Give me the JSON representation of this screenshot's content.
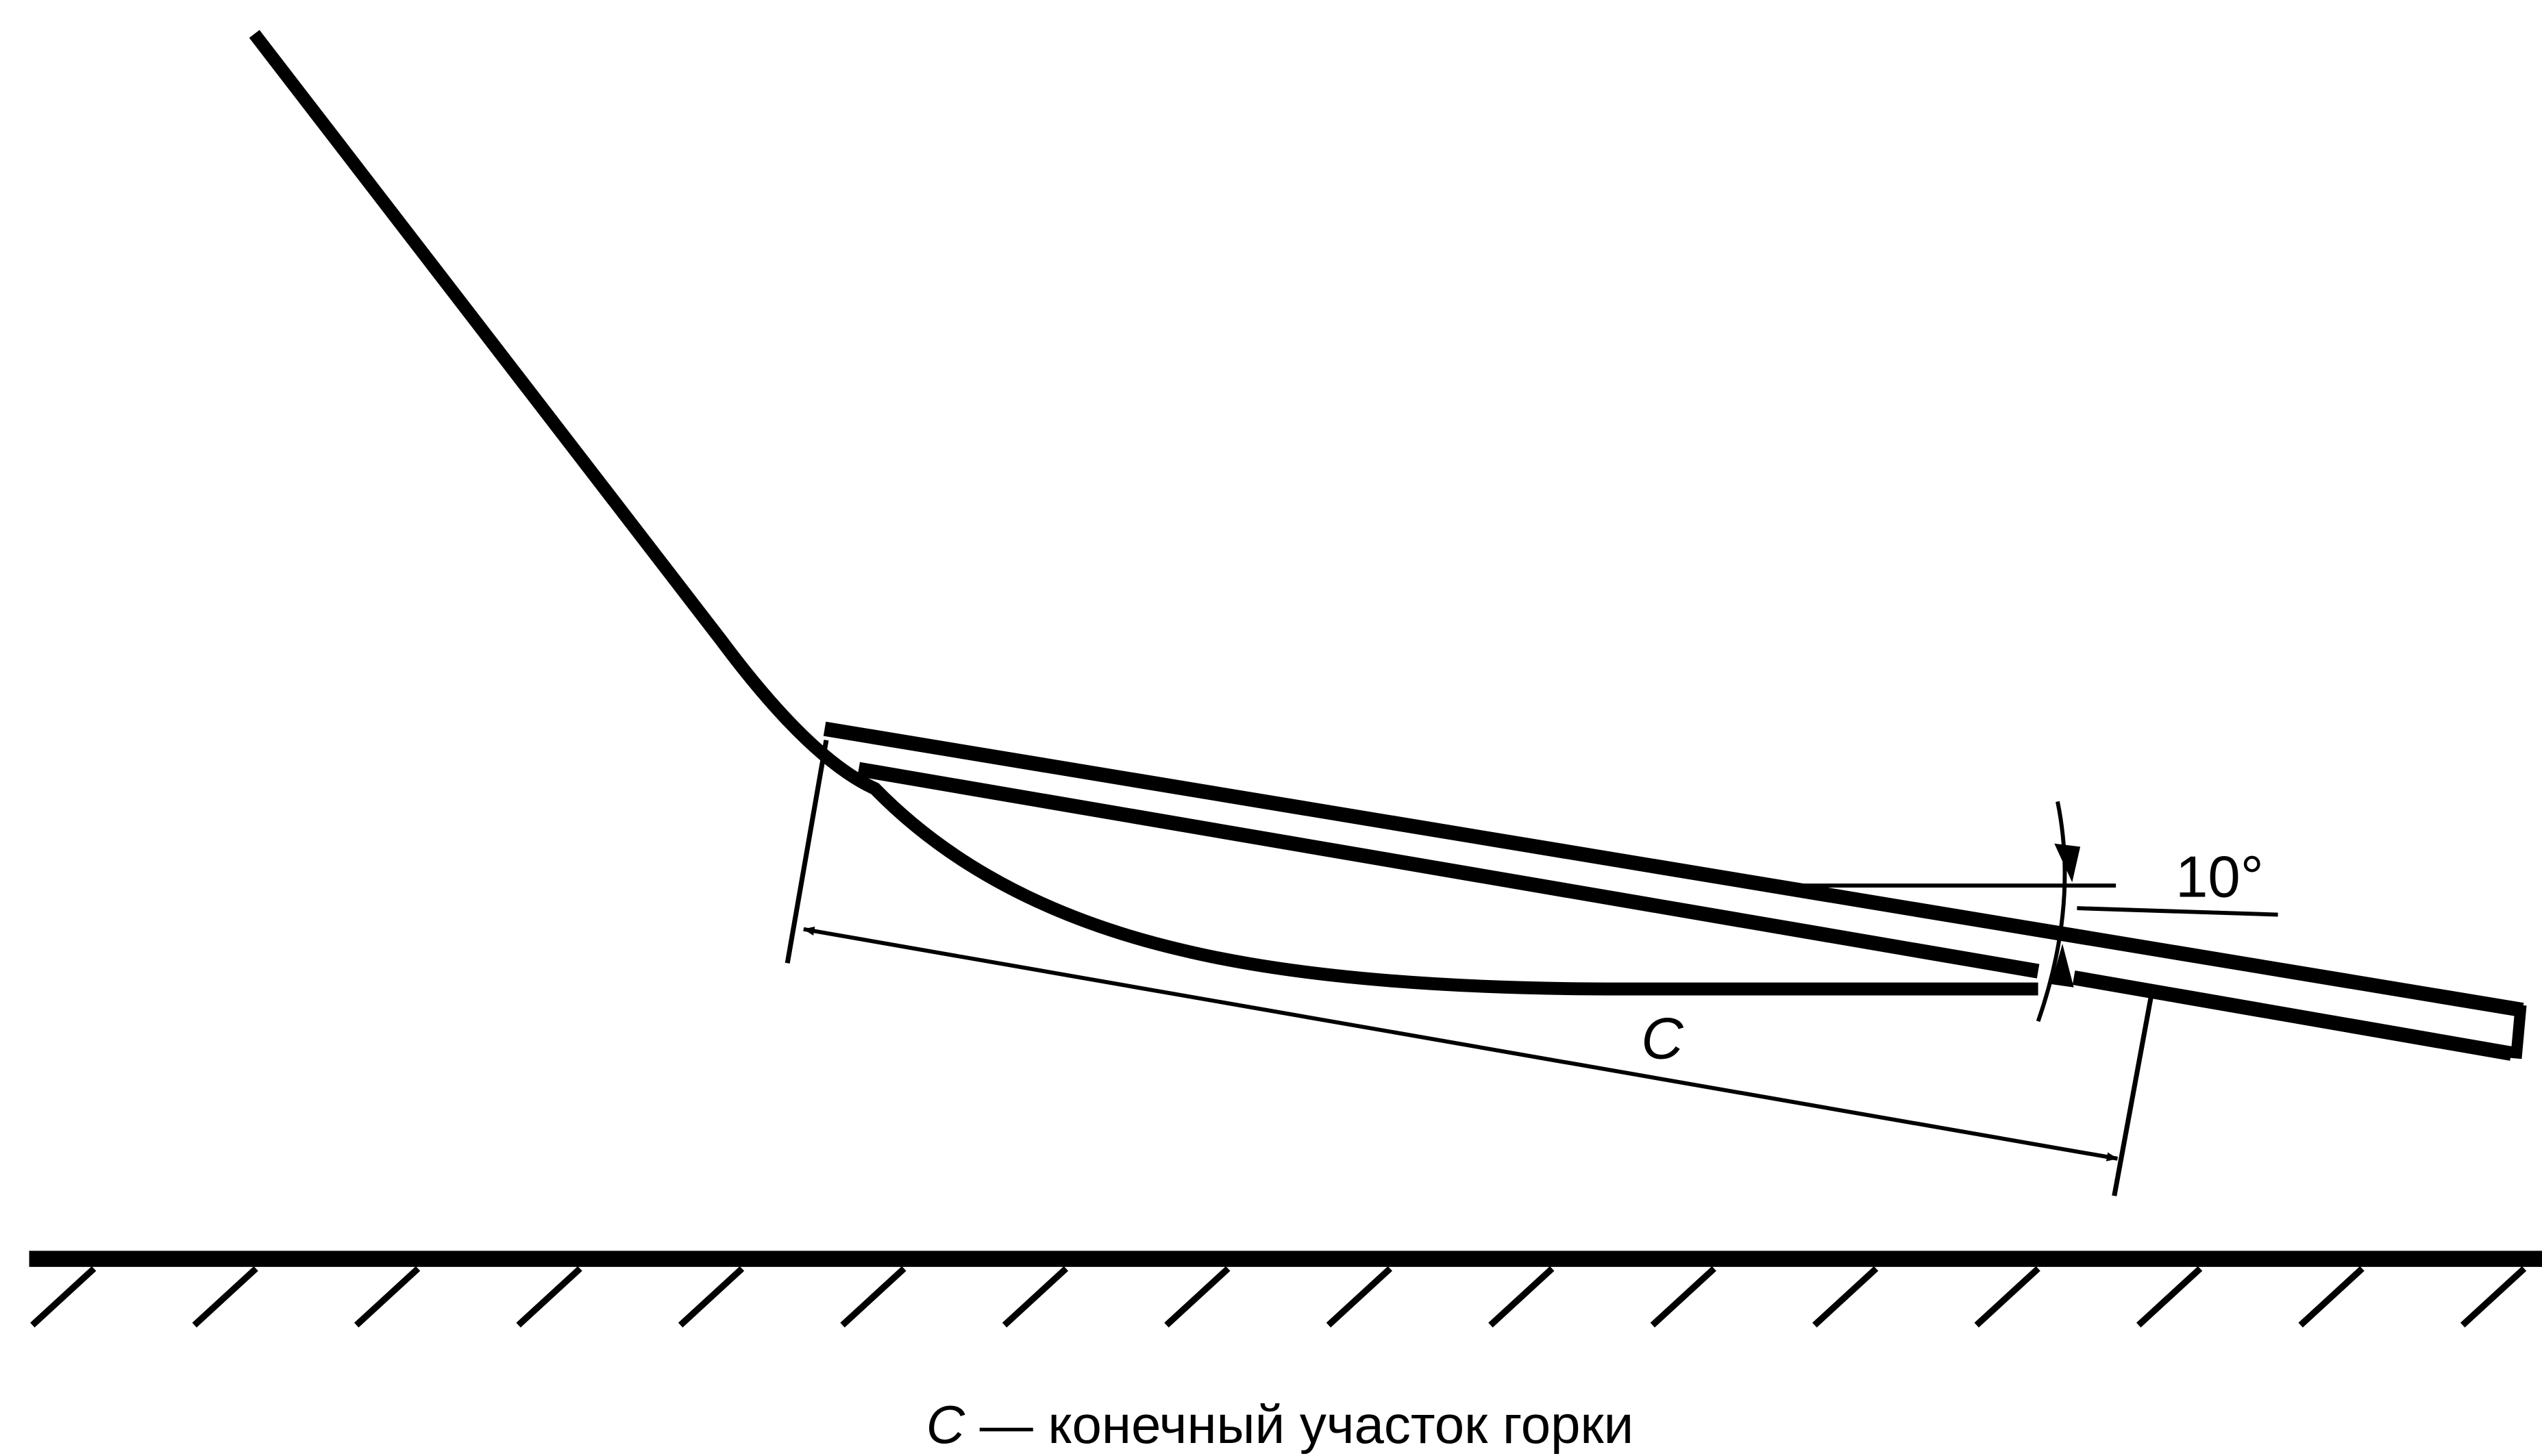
{
  "diagram": {
    "angle_label": "10°",
    "dimension_label": "C",
    "caption": {
      "symbol": "C",
      "text": " — конечный участок горки"
    }
  },
  "colors": {
    "line": "#000000",
    "background": "#ffffff"
  }
}
